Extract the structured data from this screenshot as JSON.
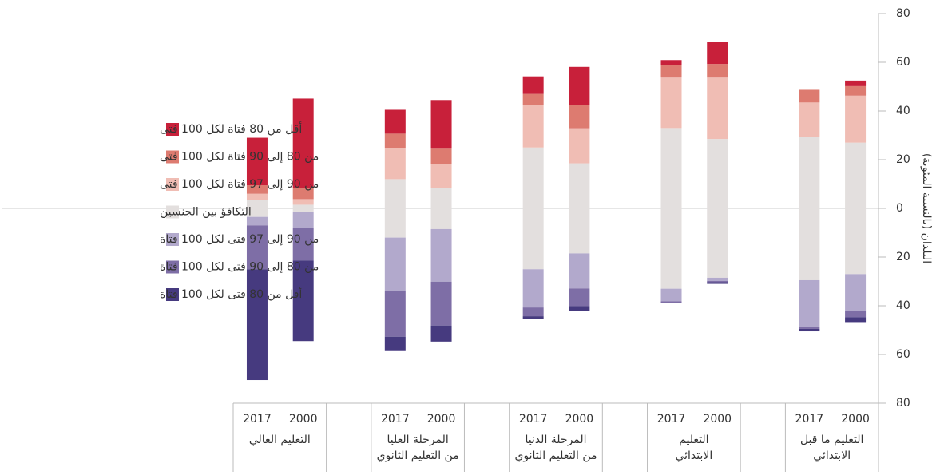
{
  "chart_data": {
    "type": "diverging-stacked-bar",
    "y_label": "البلدان (بالنسبة المئوية)",
    "ylim": [
      -80,
      80
    ],
    "yticks": [
      {
        "value": -80,
        "label": "80"
      },
      {
        "value": -60,
        "label": "60"
      },
      {
        "value": -40,
        "label": "40"
      },
      {
        "value": -20,
        "label": "20"
      },
      0,
      20,
      40,
      60,
      80
    ],
    "categories": [
      "2017",
      "2000",
      "2017",
      "2000",
      "2017",
      "2000",
      "2017",
      "2000",
      "2017",
      "2000"
    ],
    "groups": [
      [
        "التعليم العالي"
      ],
      [
        "المرحلة العليا",
        "من التعليم الثانوي"
      ],
      [
        "المرحلة الدنيا",
        "من التعليم الثانوي"
      ],
      [
        "التعليم",
        "الابتدائي"
      ],
      [
        "التعليم ما قبل",
        "الابتدائي"
      ]
    ],
    "series": [
      {
        "name": "أقل من 80 فتاة لكل 100 فتى",
        "color": "#c8203a",
        "values": [
          19.5,
          36.7,
          9.8,
          20,
          7.2,
          15.7,
          2,
          9.2,
          0,
          2.3
        ]
      },
      {
        "name": "من 80 إلى 90 فتاة لكل 100 فتى",
        "color": "#dd7b70",
        "values": [
          3.5,
          4.6,
          5.9,
          6.2,
          4.6,
          9.5,
          5.2,
          5.6,
          5.2,
          3.9
        ]
      },
      {
        "name": "من 90 إلى 97 فتاة لكل 100 فتى",
        "color": "#f0bdb4",
        "values": [
          2.5,
          2.3,
          12.8,
          9.8,
          17.4,
          14.4,
          20.7,
          25.2,
          14,
          19.3
        ]
      },
      {
        "name": "التكافؤ بين الجنسين",
        "color": "#e3dfde",
        "stack": "center",
        "values": [
          7,
          3,
          24,
          17,
          50,
          37,
          66,
          57,
          59,
          54
        ]
      },
      {
        "name": "من 90 إلى 97 فتى لكل 100 فتاة",
        "color": "#b2a9cc",
        "values": [
          -3.5,
          -6.5,
          -22,
          -21.6,
          -15.7,
          -14.4,
          -5.2,
          -1.3,
          -19,
          -15.1
        ]
      },
      {
        "name": "من 80 إلى 90 فتى لكل 100 فتاة",
        "color": "#7e6ea6",
        "values": [
          -18,
          -13.4,
          -18.7,
          -18,
          -3.6,
          -7.2,
          -0.5,
          -0.5,
          -1,
          -2.6
        ]
      },
      {
        "name": "أقل من 80 فتى لكل 100 فتاة",
        "color": "#463a7f",
        "values": [
          -45.5,
          -33.1,
          -5.9,
          -6.6,
          -1,
          -2,
          -0.3,
          -0.7,
          -1,
          -2
        ]
      }
    ]
  }
}
